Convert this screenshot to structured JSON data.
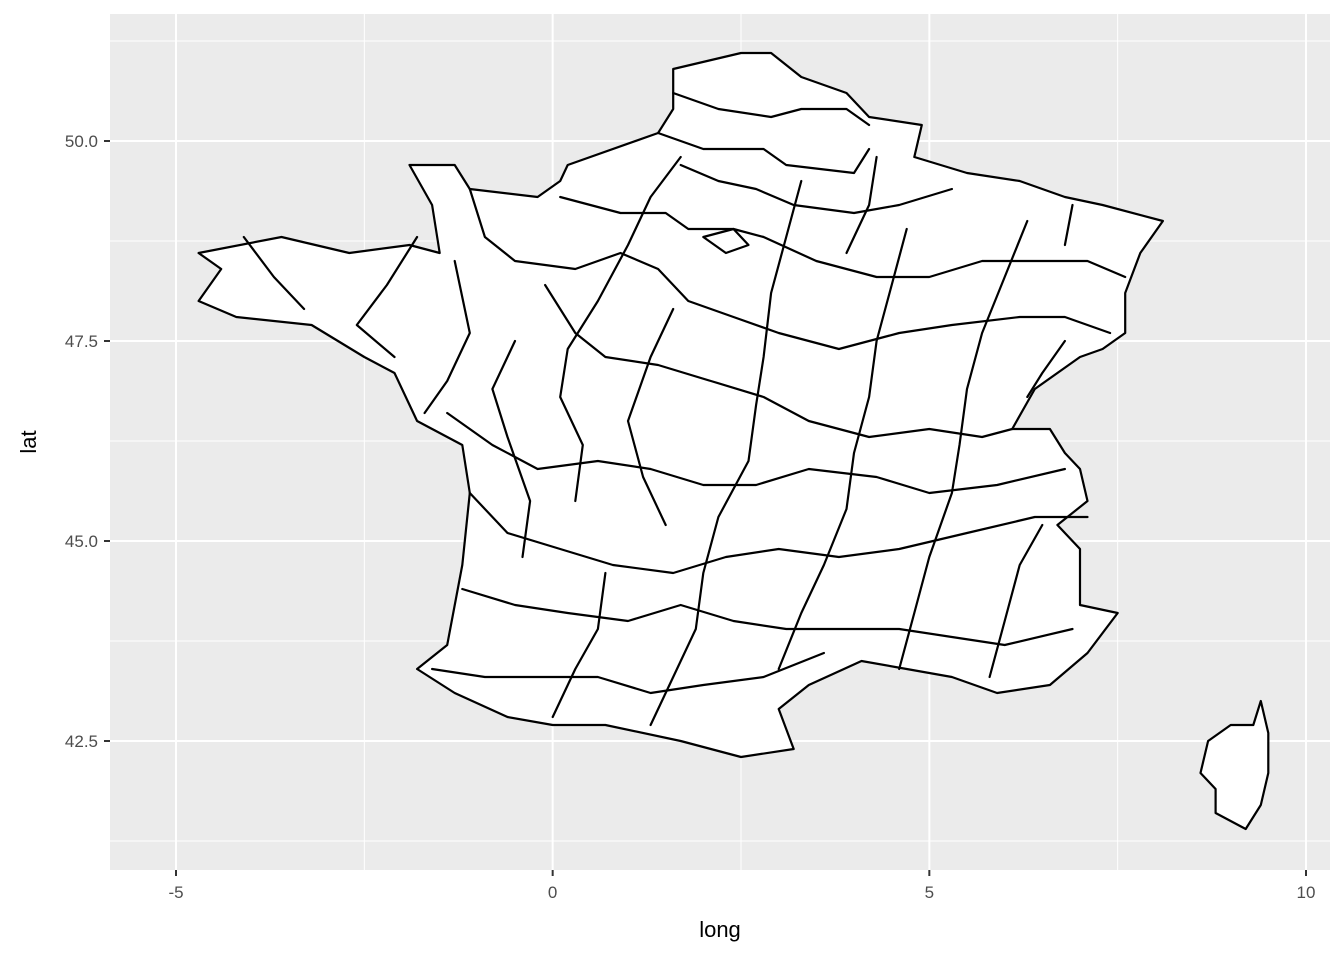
{
  "chart_data": {
    "type": "map",
    "xlabel": "long",
    "ylabel": "lat",
    "xlim": [
      -5.9,
      10.2
    ],
    "ylim": [
      41.2,
      51.5
    ],
    "x_ticks": [
      -5,
      0,
      5,
      10
    ],
    "x_tick_labels": [
      "-5",
      "0",
      "5",
      "10"
    ],
    "x_minor_ticks": [
      -2.5,
      2.5,
      7.5
    ],
    "y_ticks": [
      42.5,
      45.0,
      47.5,
      50.0
    ],
    "y_tick_labels": [
      "42.5",
      "45.0",
      "47.5",
      "50.0"
    ],
    "y_minor_ticks": [
      41.25,
      43.75,
      46.25,
      48.75,
      51.25
    ],
    "grid": true,
    "panel_color": "#ebebeb",
    "grid_color": "#ffffff",
    "region_fill": "#ffffff",
    "region_stroke": "#000000",
    "regions": "departements of France",
    "mainland_outline": [
      [
        2.5,
        51.1
      ],
      [
        2.9,
        51.1
      ],
      [
        3.3,
        50.8
      ],
      [
        3.9,
        50.6
      ],
      [
        4.2,
        50.3
      ],
      [
        4.9,
        50.2
      ],
      [
        4.8,
        49.8
      ],
      [
        5.5,
        49.6
      ],
      [
        6.2,
        49.5
      ],
      [
        6.8,
        49.3
      ],
      [
        7.3,
        49.2
      ],
      [
        8.1,
        49.0
      ],
      [
        7.8,
        48.6
      ],
      [
        7.6,
        48.1
      ],
      [
        7.6,
        47.6
      ],
      [
        7.3,
        47.4
      ],
      [
        7.0,
        47.3
      ],
      [
        6.4,
        46.9
      ],
      [
        6.1,
        46.4
      ],
      [
        6.6,
        46.4
      ],
      [
        6.8,
        46.1
      ],
      [
        7.0,
        45.9
      ],
      [
        7.1,
        45.5
      ],
      [
        6.7,
        45.2
      ],
      [
        7.0,
        44.9
      ],
      [
        7.0,
        44.2
      ],
      [
        7.5,
        44.1
      ],
      [
        7.1,
        43.6
      ],
      [
        6.6,
        43.2
      ],
      [
        5.9,
        43.1
      ],
      [
        5.3,
        43.3
      ],
      [
        4.7,
        43.4
      ],
      [
        4.1,
        43.5
      ],
      [
        3.4,
        43.2
      ],
      [
        3.0,
        42.9
      ],
      [
        3.2,
        42.4
      ],
      [
        2.5,
        42.3
      ],
      [
        1.7,
        42.5
      ],
      [
        0.7,
        42.7
      ],
      [
        0.0,
        42.7
      ],
      [
        -0.6,
        42.8
      ],
      [
        -1.3,
        43.1
      ],
      [
        -1.8,
        43.4
      ],
      [
        -1.4,
        43.7
      ],
      [
        -1.2,
        44.7
      ],
      [
        -1.1,
        45.6
      ],
      [
        -1.2,
        46.2
      ],
      [
        -1.8,
        46.5
      ],
      [
        -2.1,
        47.1
      ],
      [
        -2.5,
        47.3
      ],
      [
        -3.2,
        47.7
      ],
      [
        -4.2,
        47.8
      ],
      [
        -4.7,
        48.0
      ],
      [
        -4.4,
        48.4
      ],
      [
        -4.7,
        48.6
      ],
      [
        -3.6,
        48.8
      ],
      [
        -2.7,
        48.6
      ],
      [
        -1.9,
        48.7
      ],
      [
        -1.5,
        48.6
      ],
      [
        -1.6,
        49.2
      ],
      [
        -1.9,
        49.7
      ],
      [
        -1.3,
        49.7
      ],
      [
        -1.1,
        49.4
      ],
      [
        -0.2,
        49.3
      ],
      [
        0.1,
        49.5
      ],
      [
        0.2,
        49.7
      ],
      [
        1.4,
        50.1
      ],
      [
        1.6,
        50.4
      ],
      [
        1.6,
        50.9
      ],
      [
        2.5,
        51.1
      ]
    ],
    "corsica_outline": [
      [
        9.4,
        43.0
      ],
      [
        9.5,
        42.6
      ],
      [
        9.5,
        42.1
      ],
      [
        9.4,
        41.7
      ],
      [
        9.2,
        41.4
      ],
      [
        8.8,
        41.6
      ],
      [
        8.8,
        41.9
      ],
      [
        8.6,
        42.1
      ],
      [
        8.7,
        42.5
      ],
      [
        9.0,
        42.7
      ],
      [
        9.3,
        42.7
      ],
      [
        9.4,
        43.0
      ]
    ],
    "internal_borders": [
      [
        [
          1.6,
          50.6
        ],
        [
          2.2,
          50.4
        ],
        [
          2.9,
          50.3
        ],
        [
          3.3,
          50.4
        ],
        [
          3.9,
          50.4
        ],
        [
          4.2,
          50.2
        ]
      ],
      [
        [
          1.4,
          50.1
        ],
        [
          2.0,
          49.9
        ],
        [
          2.8,
          49.9
        ],
        [
          3.1,
          49.7
        ],
        [
          4.0,
          49.6
        ],
        [
          4.2,
          49.9
        ]
      ],
      [
        [
          1.7,
          49.7
        ],
        [
          2.2,
          49.5
        ],
        [
          2.7,
          49.4
        ],
        [
          3.2,
          49.2
        ],
        [
          4.0,
          49.1
        ],
        [
          4.6,
          49.2
        ],
        [
          5.3,
          49.4
        ]
      ],
      [
        [
          0.1,
          49.3
        ],
        [
          0.9,
          49.1
        ],
        [
          1.5,
          49.1
        ],
        [
          1.8,
          48.9
        ],
        [
          2.4,
          48.9
        ],
        [
          2.8,
          48.8
        ],
        [
          3.5,
          48.5
        ],
        [
          4.3,
          48.3
        ],
        [
          5.0,
          48.3
        ],
        [
          5.7,
          48.5
        ],
        [
          6.3,
          48.5
        ],
        [
          7.1,
          48.5
        ],
        [
          7.6,
          48.3
        ]
      ],
      [
        [
          -1.1,
          49.4
        ],
        [
          -0.9,
          48.8
        ],
        [
          -0.5,
          48.5
        ],
        [
          0.3,
          48.4
        ],
        [
          0.9,
          48.6
        ],
        [
          1.4,
          48.4
        ],
        [
          1.8,
          48.0
        ],
        [
          2.4,
          47.8
        ],
        [
          3.0,
          47.6
        ],
        [
          3.8,
          47.4
        ],
        [
          4.6,
          47.6
        ],
        [
          5.3,
          47.7
        ],
        [
          6.2,
          47.8
        ],
        [
          6.8,
          47.8
        ],
        [
          7.4,
          47.6
        ]
      ],
      [
        [
          -1.8,
          48.8
        ],
        [
          -2.2,
          48.2
        ],
        [
          -2.6,
          47.7
        ],
        [
          -2.1,
          47.3
        ]
      ],
      [
        [
          -4.1,
          48.8
        ],
        [
          -3.7,
          48.3
        ],
        [
          -3.3,
          47.9
        ]
      ],
      [
        [
          -1.3,
          48.5
        ],
        [
          -1.1,
          47.6
        ],
        [
          -1.4,
          47.0
        ],
        [
          -1.7,
          46.6
        ]
      ],
      [
        [
          -0.1,
          48.2
        ],
        [
          0.3,
          47.6
        ],
        [
          0.7,
          47.3
        ],
        [
          1.4,
          47.2
        ],
        [
          2.1,
          47.0
        ],
        [
          2.8,
          46.8
        ],
        [
          3.4,
          46.5
        ],
        [
          4.2,
          46.3
        ],
        [
          5.0,
          46.4
        ],
        [
          5.7,
          46.3
        ],
        [
          6.1,
          46.4
        ]
      ],
      [
        [
          -1.4,
          46.6
        ],
        [
          -0.8,
          46.2
        ],
        [
          -0.2,
          45.9
        ],
        [
          0.6,
          46.0
        ],
        [
          1.3,
          45.9
        ],
        [
          2.0,
          45.7
        ],
        [
          2.7,
          45.7
        ],
        [
          3.4,
          45.9
        ],
        [
          4.3,
          45.8
        ],
        [
          5.0,
          45.6
        ],
        [
          5.9,
          45.7
        ],
        [
          6.8,
          45.9
        ]
      ],
      [
        [
          -1.1,
          45.6
        ],
        [
          -0.6,
          45.1
        ],
        [
          0.1,
          44.9
        ],
        [
          0.8,
          44.7
        ],
        [
          1.6,
          44.6
        ],
        [
          2.3,
          44.8
        ],
        [
          3.0,
          44.9
        ],
        [
          3.8,
          44.8
        ],
        [
          4.6,
          44.9
        ],
        [
          5.5,
          45.1
        ],
        [
          6.4,
          45.3
        ],
        [
          7.1,
          45.3
        ]
      ],
      [
        [
          -1.2,
          44.4
        ],
        [
          -0.5,
          44.2
        ],
        [
          0.2,
          44.1
        ],
        [
          1.0,
          44.0
        ],
        [
          1.7,
          44.2
        ],
        [
          2.4,
          44.0
        ],
        [
          3.1,
          43.9
        ],
        [
          3.8,
          43.9
        ],
        [
          4.6,
          43.9
        ],
        [
          5.3,
          43.8
        ],
        [
          6.0,
          43.7
        ],
        [
          6.9,
          43.9
        ]
      ],
      [
        [
          -1.6,
          43.4
        ],
        [
          -0.9,
          43.3
        ],
        [
          -0.2,
          43.3
        ],
        [
          0.6,
          43.3
        ],
        [
          1.3,
          43.1
        ],
        [
          2.0,
          43.2
        ],
        [
          2.8,
          43.3
        ],
        [
          3.6,
          43.6
        ]
      ],
      [
        [
          0.0,
          42.8
        ],
        [
          0.3,
          43.4
        ],
        [
          0.6,
          43.9
        ],
        [
          0.7,
          44.6
        ]
      ],
      [
        [
          1.3,
          42.7
        ],
        [
          1.6,
          43.3
        ],
        [
          1.9,
          43.9
        ],
        [
          2.0,
          44.6
        ],
        [
          2.2,
          45.3
        ],
        [
          2.6,
          46.0
        ],
        [
          2.7,
          46.7
        ],
        [
          2.8,
          47.3
        ],
        [
          2.9,
          48.1
        ],
        [
          3.1,
          48.8
        ],
        [
          3.3,
          49.5
        ]
      ],
      [
        [
          3.0,
          43.4
        ],
        [
          3.3,
          44.1
        ],
        [
          3.6,
          44.7
        ],
        [
          3.9,
          45.4
        ],
        [
          4.0,
          46.1
        ],
        [
          4.2,
          46.8
        ],
        [
          4.3,
          47.5
        ],
        [
          4.5,
          48.2
        ],
        [
          4.7,
          48.9
        ]
      ],
      [
        [
          4.6,
          43.4
        ],
        [
          4.8,
          44.1
        ],
        [
          5.0,
          44.8
        ],
        [
          5.3,
          45.6
        ],
        [
          5.4,
          46.2
        ],
        [
          5.5,
          46.9
        ],
        [
          5.7,
          47.6
        ],
        [
          6.0,
          48.3
        ],
        [
          6.3,
          49.0
        ]
      ],
      [
        [
          5.8,
          43.3
        ],
        [
          6.0,
          44.0
        ],
        [
          6.2,
          44.7
        ],
        [
          6.5,
          45.2
        ]
      ],
      [
        [
          0.3,
          45.5
        ],
        [
          0.4,
          46.2
        ],
        [
          0.1,
          46.8
        ],
        [
          0.2,
          47.4
        ],
        [
          0.6,
          48.0
        ],
        [
          1.0,
          48.7
        ],
        [
          1.3,
          49.3
        ],
        [
          1.7,
          49.8
        ]
      ],
      [
        [
          -0.4,
          44.8
        ],
        [
          -0.3,
          45.5
        ],
        [
          -0.6,
          46.3
        ],
        [
          -0.8,
          46.9
        ],
        [
          -0.5,
          47.5
        ]
      ],
      [
        [
          1.5,
          45.2
        ],
        [
          1.2,
          45.8
        ],
        [
          1.0,
          46.5
        ],
        [
          1.3,
          47.3
        ],
        [
          1.6,
          47.9
        ]
      ],
      [
        [
          3.9,
          48.6
        ],
        [
          4.2,
          49.2
        ],
        [
          4.3,
          49.8
        ]
      ],
      [
        [
          6.8,
          48.7
        ],
        [
          6.9,
          49.2
        ]
      ],
      [
        [
          6.8,
          47.5
        ],
        [
          6.5,
          47.1
        ],
        [
          6.3,
          46.8
        ]
      ],
      [
        [
          2.0,
          48.8
        ],
        [
          2.3,
          48.6
        ],
        [
          2.6,
          48.7
        ],
        [
          2.4,
          48.9
        ],
        [
          2.0,
          48.8
        ]
      ]
    ]
  }
}
